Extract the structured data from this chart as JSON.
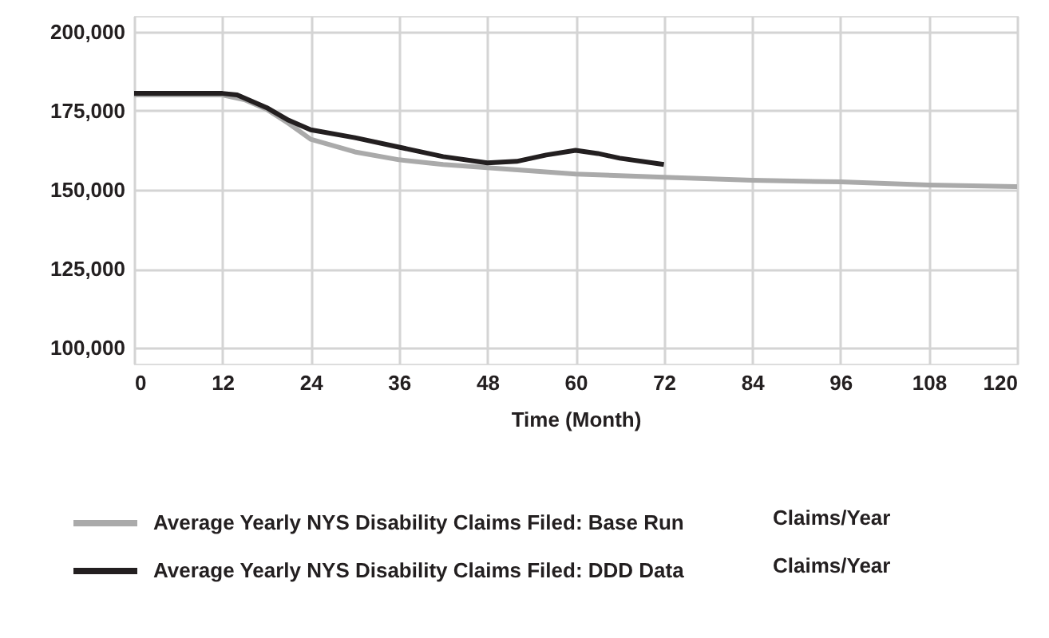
{
  "chart_data": {
    "type": "line",
    "xlabel": "Time (Month)",
    "xlim": [
      0,
      120
    ],
    "xticks": [
      0,
      12,
      24,
      36,
      48,
      60,
      72,
      84,
      96,
      108,
      120
    ],
    "ylim": [
      95000,
      205000
    ],
    "yticks": [
      {
        "value": 100000,
        "label": "100,000"
      },
      {
        "value": 125000,
        "label": "125,000"
      },
      {
        "value": 150000,
        "label": "150,000"
      },
      {
        "value": 175000,
        "label": "175,000"
      },
      {
        "value": 200000,
        "label": "200,000"
      }
    ],
    "grid": true,
    "legend": "bottom",
    "line_style": "solid",
    "marker": "none",
    "annotations": [
      "Claims/Year",
      "Claims/Year"
    ],
    "series": [
      {
        "name": "Average Yearly NYS Disability Claims Filed: Base Run",
        "color": "#aaaaaa",
        "x": [
          0,
          12,
          15,
          18,
          21,
          24,
          30,
          36,
          42,
          48,
          54,
          60,
          66,
          72,
          84,
          96,
          108,
          120
        ],
        "values": [
          180000,
          180000,
          178500,
          175500,
          171000,
          166000,
          162000,
          159500,
          158000,
          157000,
          156000,
          155000,
          154500,
          154000,
          153000,
          152500,
          151500,
          151000
        ]
      },
      {
        "name": "Average Yearly NYS Disability Claims Filed: DDD Data",
        "color": "#231f20",
        "x": [
          0,
          12,
          14,
          16,
          18,
          21,
          24,
          30,
          36,
          42,
          48,
          52,
          56,
          60,
          63,
          66,
          72
        ],
        "values": [
          180500,
          180500,
          180000,
          178000,
          176000,
          172000,
          169000,
          166500,
          163500,
          160500,
          158500,
          159000,
          161000,
          162500,
          161500,
          160000,
          158000
        ]
      }
    ]
  }
}
